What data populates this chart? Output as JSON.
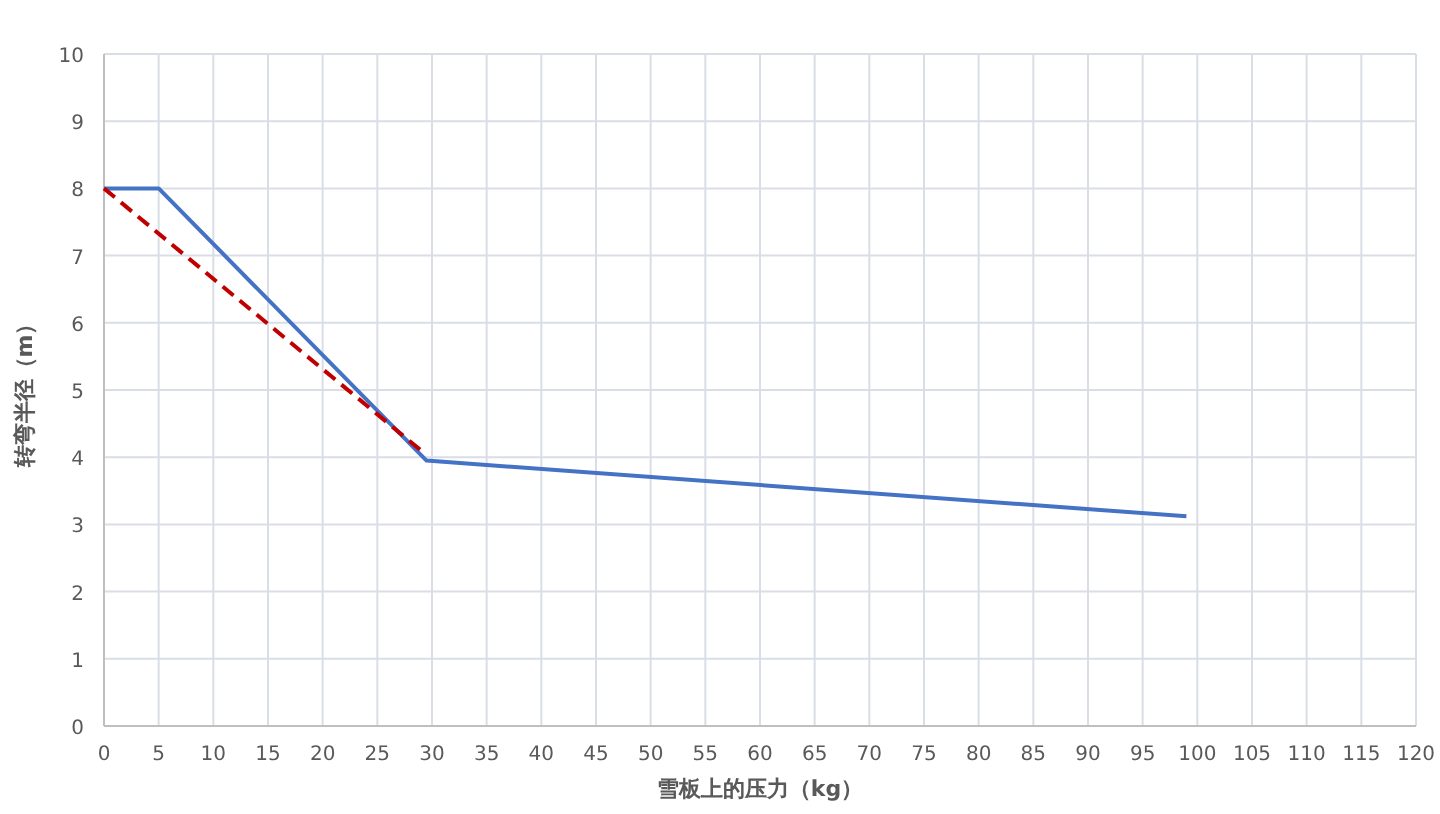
{
  "chart_data": {
    "type": "line",
    "xlabel": "雪板上的压力（kg）",
    "ylabel": "转弯半径（m）",
    "xlim": [
      0,
      120
    ],
    "xticks": [
      0,
      5,
      10,
      15,
      20,
      25,
      30,
      35,
      40,
      45,
      50,
      55,
      60,
      65,
      70,
      75,
      80,
      85,
      90,
      95,
      100,
      105,
      110,
      115,
      120
    ],
    "ylim": [
      0,
      10
    ],
    "yticks": [
      0,
      1,
      2,
      3,
      4,
      5,
      6,
      7,
      8,
      9,
      10
    ],
    "grid": true,
    "series": [
      {
        "color": "#4472c4",
        "line_style": "solid",
        "x": [
          0,
          5,
          29.5,
          99
        ],
        "values": [
          8,
          8,
          3.95,
          3.12
        ]
      },
      {
        "color": "#c00000",
        "line_style": "dashed",
        "x": [
          0,
          29
        ],
        "values": [
          8,
          4.1
        ]
      }
    ]
  }
}
